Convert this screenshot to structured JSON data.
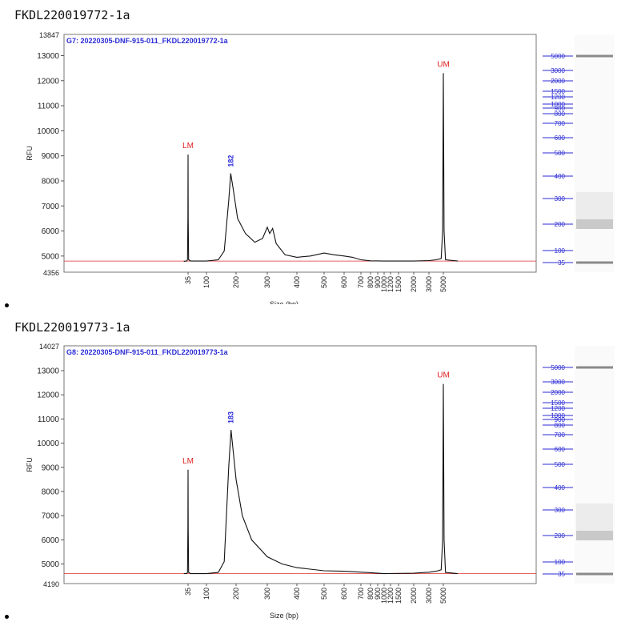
{
  "panels": [
    {
      "heading": "FKDL220019772-1a",
      "chart_data": {
        "type": "line",
        "title": "G7: 20220305-DNF-915-011_FKDL220019772-1a",
        "xlabel": "Size (bp)",
        "ylabel": "RFU",
        "x_scale": "ladder",
        "xticks": [
          "35",
          "100",
          "200",
          "300",
          "400",
          "500",
          "600",
          "700",
          "800",
          "900",
          "1000",
          "1200",
          "1500",
          "2000",
          "3000",
          "5000"
        ],
        "y_min_label": "4356",
        "y_max_label": "13847",
        "ylim": [
          4356,
          13847
        ],
        "yticks": [
          5000,
          6000,
          7000,
          8000,
          9000,
          10000,
          11000,
          12000,
          13000
        ],
        "series": [
          {
            "points": [
              [
                20,
                4790
              ],
              [
                30,
                4800
              ],
              [
                33,
                4850
              ],
              [
                34.5,
                6500
              ],
              [
                35,
                9050
              ],
              [
                35.5,
                6500
              ],
              [
                37,
                4850
              ],
              [
                45,
                4800
              ],
              [
                100,
                4800
              ],
              [
                140,
                4850
              ],
              [
                160,
                5200
              ],
              [
                175,
                7200
              ],
              [
                182,
                8300
              ],
              [
                190,
                7700
              ],
              [
                205,
                6500
              ],
              [
                230,
                5900
              ],
              [
                260,
                5550
              ],
              [
                285,
                5700
              ],
              [
                300,
                6150
              ],
              [
                308,
                5900
              ],
              [
                318,
                6100
              ],
              [
                330,
                5500
              ],
              [
                360,
                5050
              ],
              [
                400,
                4950
              ],
              [
                450,
                5000
              ],
              [
                500,
                5120
              ],
              [
                550,
                5050
              ],
              [
                600,
                5000
              ],
              [
                650,
                4950
              ],
              [
                700,
                4850
              ],
              [
                800,
                4810
              ],
              [
                1000,
                4800
              ],
              [
                2000,
                4800
              ],
              [
                3000,
                4820
              ],
              [
                4000,
                4850
              ],
              [
                4700,
                4900
              ],
              [
                4900,
                6000
              ],
              [
                5000,
                12300
              ],
              [
                5100,
                6000
              ],
              [
                5300,
                4850
              ],
              [
                7000,
                4800
              ]
            ]
          }
        ],
        "baseline": 4800,
        "annotations": [
          {
            "text": "LM",
            "x": 35,
            "y": 9050,
            "color": "red"
          },
          {
            "text": "182",
            "x": 182,
            "y": 8300,
            "color": "blue",
            "rotated": true
          },
          {
            "text": "UM",
            "x": 5000,
            "y": 12300,
            "color": "red"
          }
        ]
      },
      "ladder": {
        "labels": [
          "5000",
          "3000",
          "2000",
          "1500",
          "1200",
          "1000",
          "900",
          "800",
          "700",
          "600",
          "500",
          "400",
          "300",
          "200",
          "100",
          "35"
        ],
        "band_color": "#8a8a8a"
      }
    },
    {
      "heading": "FKDL220019773-1a",
      "chart_data": {
        "type": "line",
        "title": "G8: 20220305-DNF-915-011_FKDL220019773-1a",
        "xlabel": "Size (bp)",
        "ylabel": "RFU",
        "x_scale": "ladder",
        "xticks": [
          "35",
          "100",
          "200",
          "300",
          "400",
          "500",
          "600",
          "700",
          "800",
          "900",
          "1000",
          "1200",
          "1500",
          "2000",
          "3000",
          "5000"
        ],
        "y_min_label": "4190",
        "y_max_label": "14027",
        "ylim": [
          4190,
          14027
        ],
        "yticks": [
          5000,
          6000,
          7000,
          8000,
          9000,
          10000,
          11000,
          12000,
          13000
        ],
        "series": [
          {
            "points": [
              [
                20,
                4600
              ],
              [
                30,
                4600
              ],
              [
                33,
                4650
              ],
              [
                34.5,
                6500
              ],
              [
                35,
                8900
              ],
              [
                35.5,
                6500
              ],
              [
                37,
                4650
              ],
              [
                45,
                4600
              ],
              [
                100,
                4600
              ],
              [
                140,
                4650
              ],
              [
                160,
                5100
              ],
              [
                175,
                9000
              ],
              [
                183,
                10550
              ],
              [
                190,
                9700
              ],
              [
                200,
                8500
              ],
              [
                220,
                7000
              ],
              [
                250,
                6000
              ],
              [
                300,
                5300
              ],
              [
                350,
                5000
              ],
              [
                400,
                4850
              ],
              [
                500,
                4720
              ],
              [
                600,
                4700
              ],
              [
                800,
                4640
              ],
              [
                1000,
                4600
              ],
              [
                2000,
                4620
              ],
              [
                3000,
                4660
              ],
              [
                4000,
                4700
              ],
              [
                4700,
                4760
              ],
              [
                4900,
                6000
              ],
              [
                5000,
                12450
              ],
              [
                5100,
                6000
              ],
              [
                5300,
                4650
              ],
              [
                7000,
                4600
              ]
            ]
          }
        ],
        "baseline": 4600,
        "annotations": [
          {
            "text": "LM",
            "x": 35,
            "y": 8900,
            "color": "red"
          },
          {
            "text": "183",
            "x": 183,
            "y": 10550,
            "color": "blue",
            "rotated": true
          },
          {
            "text": "UM",
            "x": 5000,
            "y": 12450,
            "color": "red"
          }
        ]
      },
      "ladder": {
        "labels": [
          "5000",
          "3000",
          "2000",
          "1500",
          "1200",
          "1000",
          "900",
          "800",
          "700",
          "600",
          "500",
          "400",
          "300",
          "200",
          "100",
          "35"
        ],
        "band_color": "#8a8a8a"
      }
    }
  ]
}
